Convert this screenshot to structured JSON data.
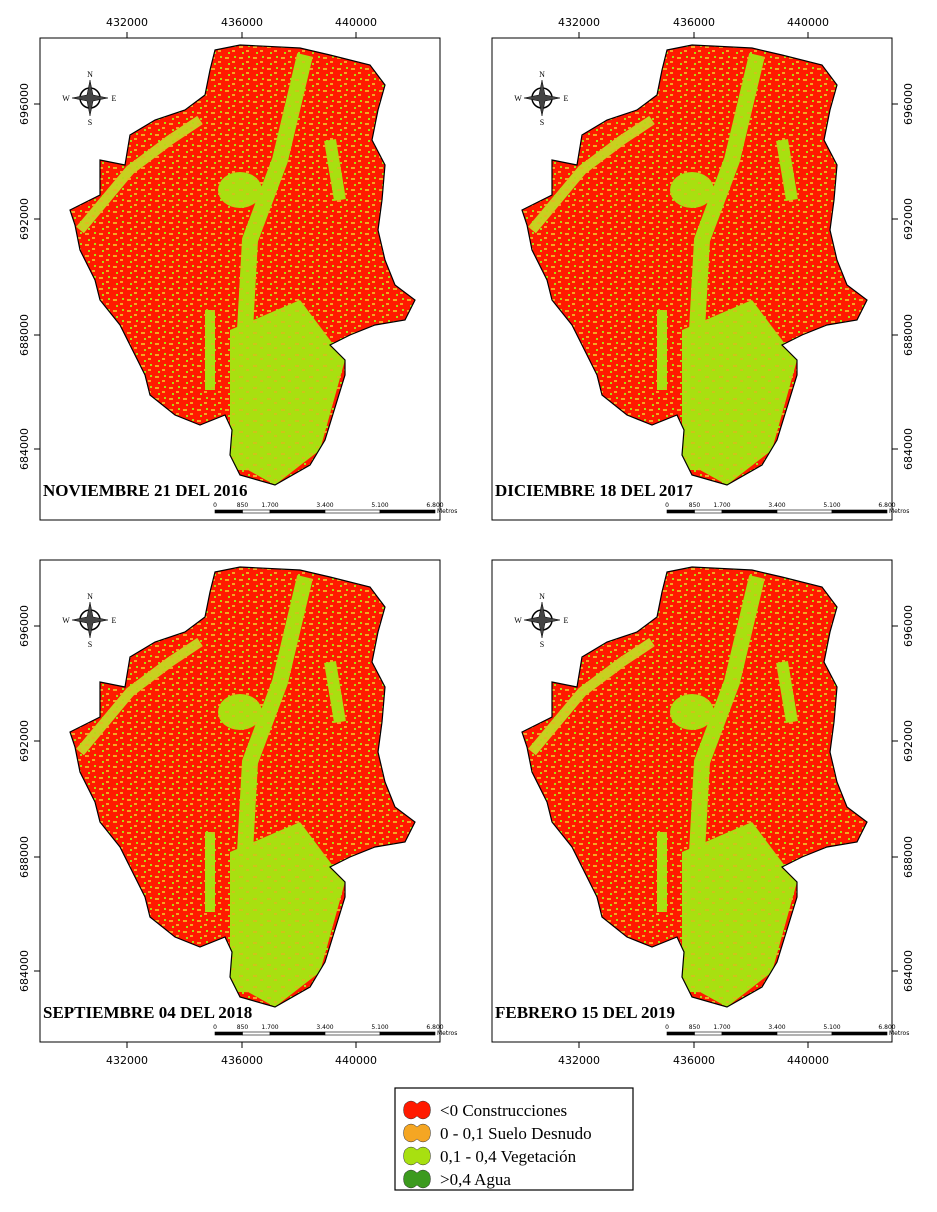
{
  "panels": [
    {
      "title": "NOVIEMBRE 21 DEL 2016",
      "x_ticks": [
        "432000",
        "436000",
        "440000"
      ],
      "y_ticks": [
        "696000",
        "692000",
        "688000",
        "684000"
      ]
    },
    {
      "title": "DICIEMBRE 18 DEL 2017",
      "x_ticks": [
        "432000",
        "436000",
        "440000"
      ],
      "y_ticks": [
        "696000",
        "692000",
        "688000",
        "684000"
      ]
    },
    {
      "title": "SEPTIEMBRE 04 DEL 2018",
      "x_ticks": [
        "432000",
        "436000",
        "440000"
      ],
      "y_ticks": [
        "696000",
        "692000",
        "688000",
        "684000"
      ]
    },
    {
      "title": "FEBRERO 15 DEL 2019",
      "x_ticks": [
        "432000",
        "436000",
        "440000"
      ],
      "y_ticks": [
        "696000",
        "692000",
        "688000",
        "684000"
      ]
    }
  ],
  "compass": {
    "n": "N",
    "s": "S",
    "e": "E",
    "w": "W"
  },
  "scale_bar": {
    "labels": [
      "0",
      "850",
      "1.700",
      "3.400",
      "5.100",
      "6.800"
    ],
    "unit": "Metros"
  },
  "legend": [
    {
      "label": "<0 Construcciones",
      "color": "#ff1a00"
    },
    {
      "label": "0 - 0,1 Suelo Desnudo",
      "color": "#f5a623"
    },
    {
      "label": "0,1 - 0,4 Vegetación",
      "color": "#a8e010"
    },
    {
      "label": ">0,4 Agua",
      "color": "#3c9a1e"
    }
  ]
}
